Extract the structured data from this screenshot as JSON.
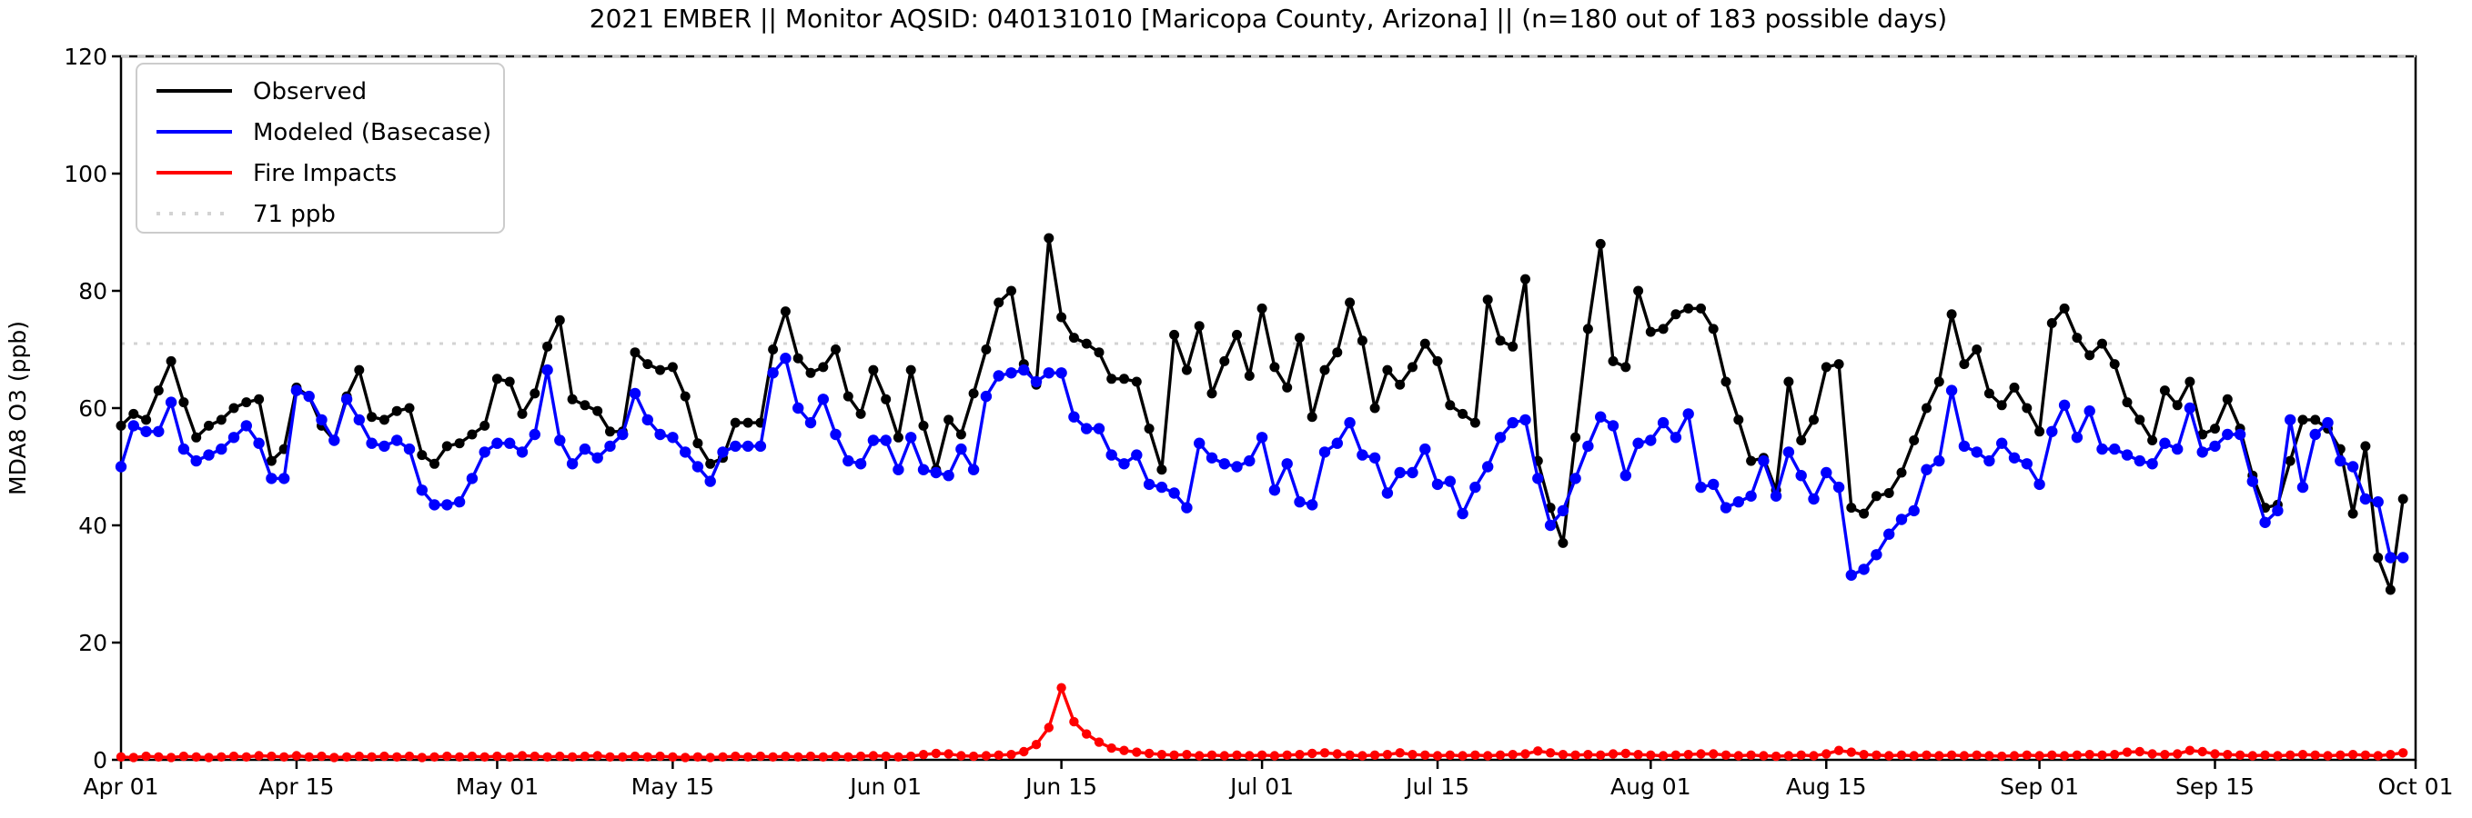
{
  "title": "2021 EMBER || Monitor AQSID: 040131010 [Maricopa County, Arizona] || (n=180 out of 183 possible days)",
  "colors": {
    "observed": "#000000",
    "modeled": "#0000ff",
    "fire": "#ff0000",
    "reference": "#d3d3d3",
    "axis": "#000000",
    "legend_border": "#cccccc"
  },
  "axes": {
    "ylabel": "MDA8 O3 (ppb)",
    "ylim": [
      0,
      120
    ],
    "yticks": [
      0,
      20,
      40,
      60,
      80,
      100,
      120
    ],
    "xtick_labels": [
      "Apr 01",
      "Apr 15",
      "May 01",
      "May 15",
      "Jun 01",
      "Jun 15",
      "Jul 01",
      "Jul 15",
      "Aug 01",
      "Aug 15",
      "Sep 01",
      "Sep 15",
      "Oct 01"
    ],
    "xtick_day_offsets": [
      0,
      14,
      30,
      44,
      61,
      75,
      91,
      105,
      122,
      136,
      153,
      167,
      183
    ]
  },
  "legend": {
    "entries": [
      {
        "label": "Observed",
        "color": "#000000",
        "style": "solid"
      },
      {
        "label": "Modeled (Basecase)",
        "color": "#0000ff",
        "style": "solid"
      },
      {
        "label": "Fire Impacts",
        "color": "#ff0000",
        "style": "solid"
      },
      {
        "label": "71 ppb",
        "color": "#d3d3d3",
        "style": "dotted"
      }
    ]
  },
  "chart_data": {
    "type": "line",
    "title": "2021 EMBER || Monitor AQSID: 040131010 [Maricopa County, Arizona] || (n=180 out of 183 possible days)",
    "xlabel": "",
    "ylabel": "MDA8 O3 (ppb)",
    "ylim": [
      0,
      120
    ],
    "x_start_label": "Apr 01",
    "x_end_label": "Sep 30",
    "x_step": "1 day",
    "n_points": 183,
    "grid": false,
    "legend_position": "upper left",
    "reference_lines": [
      {
        "label": "71 ppb",
        "value": 71,
        "style": "dotted",
        "color": "#d3d3d3"
      },
      {
        "label": "",
        "value": 120,
        "style": "dashed",
        "color": "#c8c8c8"
      }
    ],
    "series": [
      {
        "name": "Observed",
        "color": "#000000",
        "marker": "circle",
        "values": [
          57,
          59,
          58,
          63,
          68,
          61,
          55,
          57,
          58,
          60,
          61,
          61.5,
          51,
          53,
          63.5,
          62,
          57,
          54.5,
          62,
          66.5,
          58.5,
          58,
          59.5,
          60,
          52,
          50.5,
          53.5,
          54,
          55.5,
          57,
          65,
          64.5,
          59,
          62.5,
          70.5,
          75,
          61.5,
          60.5,
          59.5,
          56,
          56,
          69.5,
          67.5,
          66.5,
          67,
          62,
          54,
          50.5,
          51.5,
          57.5,
          57.5,
          57.5,
          70,
          76.5,
          68.5,
          66,
          67,
          70,
          62,
          59,
          66.5,
          61.5,
          55,
          66.5,
          57,
          49.5,
          58,
          55.5,
          62.5,
          70,
          78,
          80,
          67.5,
          64,
          89,
          75.5,
          72,
          71,
          69.5,
          65,
          65,
          64.5,
          56.5,
          49.5,
          72.5,
          66.5,
          74,
          62.5,
          68,
          72.5,
          65.5,
          77,
          67,
          63.5,
          72,
          58.5,
          66.5,
          69.5,
          78,
          71.5,
          60,
          66.5,
          64,
          67,
          71,
          68,
          60.5,
          59,
          57.5,
          78.5,
          71.5,
          70.5,
          82,
          51,
          43,
          37,
          55,
          73.5,
          88,
          68,
          67,
          80,
          73,
          73.5,
          76,
          77,
          77,
          73.5,
          64.5,
          58,
          51,
          51.5,
          46,
          64.5,
          54.5,
          58,
          67,
          67.5,
          43,
          42,
          45,
          45.5,
          49,
          54.5,
          60,
          64.5,
          76,
          67.5,
          70,
          62.5,
          60.5,
          63.5,
          60,
          56,
          74.5,
          77,
          72,
          69,
          71,
          67.5,
          61,
          58,
          54.5,
          63,
          60.5,
          64.5,
          55.5,
          56.5,
          61.5,
          56.5,
          48.5,
          43,
          43.5,
          51,
          58,
          58,
          56.5,
          53,
          42,
          53.5,
          34.5,
          29,
          44.5
        ]
      },
      {
        "name": "Modeled (Basecase)",
        "color": "#0000ff",
        "marker": "circle",
        "values": [
          50,
          57,
          56,
          56,
          61,
          53,
          51,
          52,
          53,
          55,
          57,
          54,
          48,
          48,
          63,
          62,
          58,
          54.5,
          61.5,
          58,
          54,
          53.5,
          54.5,
          53,
          46,
          43.5,
          43.5,
          44,
          48,
          52.5,
          54,
          54,
          52.5,
          55.5,
          66.5,
          54.5,
          50.5,
          53,
          51.5,
          53.5,
          55.5,
          62.5,
          58,
          55.5,
          55,
          52.5,
          50,
          47.5,
          52.5,
          53.5,
          53.5,
          53.5,
          66,
          68.5,
          60,
          57.5,
          61.5,
          55.5,
          51,
          50.5,
          54.5,
          54.5,
          49.5,
          55,
          49.5,
          49,
          48.5,
          53,
          49.5,
          62,
          65.5,
          66,
          66.5,
          64.5,
          66,
          66,
          58.5,
          56.5,
          56.5,
          52,
          50.5,
          52,
          47,
          46.5,
          45.5,
          43,
          54,
          51.5,
          50.5,
          50,
          51,
          55,
          46,
          50.5,
          44,
          43.5,
          52.5,
          54,
          57.5,
          52,
          51.5,
          45.5,
          49,
          49,
          53,
          47,
          47.5,
          42,
          46.5,
          50,
          55,
          57.5,
          58,
          48,
          40,
          42.5,
          48,
          53.5,
          58.5,
          57,
          48.5,
          54,
          54.5,
          57.5,
          55,
          59,
          46.5,
          47,
          43,
          44,
          45,
          51,
          45,
          52.5,
          48.5,
          44.5,
          49,
          46.5,
          31.5,
          32.5,
          35,
          38.5,
          41,
          42.5,
          49.5,
          51,
          63,
          53.5,
          52.5,
          51,
          54,
          51.5,
          50.5,
          47,
          56,
          60.5,
          55,
          59.5,
          53,
          53,
          52,
          51,
          50.5,
          54,
          53,
          60,
          52.5,
          53.5,
          55.5,
          55.5,
          47.5,
          40.5,
          42.5,
          58,
          46.5,
          55.5,
          57.5,
          51,
          50,
          44.5,
          44,
          34.5,
          34.5
        ]
      },
      {
        "name": "Fire Impacts",
        "color": "#ff0000",
        "marker": "circle",
        "values": [
          0.5,
          0.4,
          0.6,
          0.5,
          0.4,
          0.6,
          0.5,
          0.4,
          0.5,
          0.6,
          0.5,
          0.7,
          0.6,
          0.5,
          0.7,
          0.5,
          0.6,
          0.4,
          0.5,
          0.6,
          0.5,
          0.6,
          0.5,
          0.6,
          0.4,
          0.5,
          0.6,
          0.5,
          0.6,
          0.5,
          0.6,
          0.5,
          0.7,
          0.6,
          0.5,
          0.6,
          0.5,
          0.6,
          0.7,
          0.5,
          0.5,
          0.6,
          0.5,
          0.6,
          0.5,
          0.4,
          0.5,
          0.4,
          0.5,
          0.6,
          0.5,
          0.6,
          0.5,
          0.6,
          0.5,
          0.6,
          0.5,
          0.6,
          0.5,
          0.6,
          0.7,
          0.6,
          0.5,
          0.6,
          0.9,
          1.1,
          1.0,
          0.7,
          0.6,
          0.7,
          0.8,
          0.9,
          1.4,
          2.6,
          5.5,
          12.3,
          6.5,
          4.4,
          3.0,
          2.0,
          1.6,
          1.3,
          1.1,
          0.9,
          0.8,
          0.9,
          0.7,
          0.8,
          0.7,
          0.8,
          0.7,
          0.8,
          0.7,
          0.8,
          0.9,
          1.1,
          1.2,
          1.0,
          0.8,
          0.7,
          0.8,
          0.9,
          1.2,
          0.9,
          0.8,
          0.7,
          0.8,
          0.7,
          0.8,
          0.7,
          0.8,
          0.9,
          1.0,
          1.5,
          1.2,
          0.9,
          0.8,
          0.9,
          0.8,
          1.0,
          1.1,
          0.9,
          0.8,
          0.7,
          0.8,
          0.9,
          1.0,
          1.0,
          0.8,
          0.7,
          0.8,
          0.7,
          0.6,
          0.7,
          0.8,
          0.7,
          1.0,
          1.6,
          1.3,
          0.9,
          0.8,
          0.7,
          0.8,
          0.7,
          0.8,
          0.7,
          0.8,
          0.7,
          0.8,
          0.7,
          0.6,
          0.7,
          0.8,
          0.7,
          0.8,
          0.7,
          0.8,
          0.9,
          0.8,
          0.9,
          1.3,
          1.4,
          1.0,
          0.9,
          1.0,
          1.6,
          1.4,
          1.0,
          0.9,
          0.8,
          0.7,
          0.8,
          0.7,
          0.8,
          0.9,
          0.8,
          0.7,
          0.8,
          0.9,
          0.8,
          0.7,
          0.9,
          1.2
        ]
      }
    ]
  }
}
